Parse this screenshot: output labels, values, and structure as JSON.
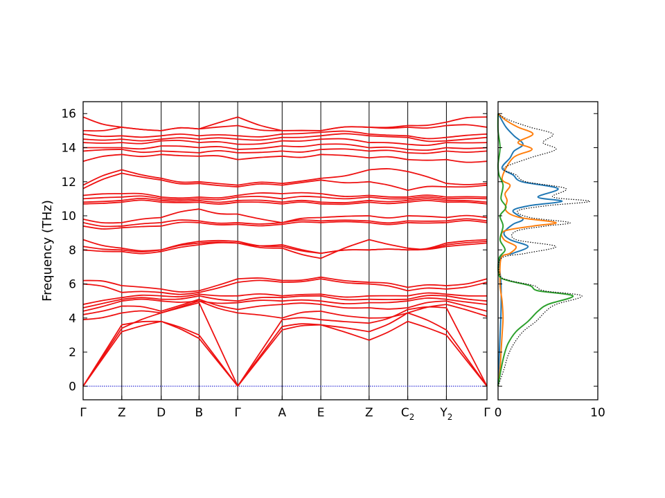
{
  "chart_data": [
    {
      "type": "line",
      "panel": "phonon-band-structure",
      "ylabel": "Frequency (THz)",
      "ylim": [
        -0.8,
        16.7
      ],
      "yticks": [
        0,
        2,
        4,
        6,
        8,
        10,
        12,
        14,
        16
      ],
      "high_symmetry_points": [
        {
          "label": "Γ",
          "sub": "",
          "x": 0.0
        },
        {
          "label": "Z",
          "sub": "",
          "x": 1.0
        },
        {
          "label": "D",
          "sub": "",
          "x": 2.02
        },
        {
          "label": "B",
          "sub": "",
          "x": 3.0
        },
        {
          "label": "Γ",
          "sub": "",
          "x": 4.0
        },
        {
          "label": "A",
          "sub": "",
          "x": 5.15
        },
        {
          "label": "E",
          "sub": "",
          "x": 6.15
        },
        {
          "label": "Z",
          "sub": "",
          "x": 7.4
        },
        {
          "label": "C",
          "sub": "2",
          "x": 8.4
        },
        {
          "label": "Y",
          "sub": "2",
          "x": 9.4
        },
        {
          "label": "Γ",
          "sub": "",
          "x": 10.45
        }
      ],
      "zero_line": {
        "y": 0,
        "color": "#0000cc"
      },
      "band_color": "#ee1111",
      "bands": [
        {
          "y": [
            0,
            3.2,
            3.8,
            2.8,
            0,
            3.3,
            3.6,
            2.7,
            3.8,
            3.0,
            0
          ]
        },
        {
          "y": [
            0,
            3.6,
            3.8,
            3.0,
            0,
            3.5,
            3.6,
            3.2,
            4.3,
            3.3,
            0
          ]
        },
        {
          "y": [
            0,
            3.4,
            4.3,
            4.9,
            0,
            3.9,
            3.9,
            3.7,
            4.5,
            4.6,
            0
          ]
        },
        {
          "y": [
            3.9,
            4.3,
            4.3,
            5.0,
            4.3,
            4.0,
            4.4,
            4.0,
            4.3,
            4.8,
            4.1
          ]
        },
        {
          "y": [
            4.2,
            4.7,
            4.4,
            5.1,
            4.5,
            4.8,
            4.8,
            4.6,
            4.6,
            5.0,
            4.4
          ]
        },
        {
          "y": [
            4.4,
            5.0,
            5.0,
            5.0,
            4.9,
            5.0,
            5.0,
            4.9,
            5.0,
            5.1,
            4.8
          ]
        },
        {
          "y": [
            4.6,
            5.1,
            5.1,
            5.3,
            5.0,
            5.2,
            5.3,
            5.1,
            5.1,
            5.3,
            5.0
          ]
        },
        {
          "y": [
            4.8,
            5.2,
            5.3,
            5.4,
            5.3,
            5.3,
            5.4,
            5.3,
            5.3,
            5.4,
            5.3
          ]
        },
        {
          "y": [
            6.0,
            5.5,
            5.5,
            5.5,
            6.1,
            6.1,
            6.3,
            6.0,
            5.6,
            5.7,
            6.1
          ]
        },
        {
          "y": [
            6.2,
            5.9,
            5.7,
            5.6,
            6.3,
            6.2,
            6.4,
            6.1,
            5.8,
            5.9,
            6.3
          ]
        },
        {
          "y": [
            8.0,
            7.9,
            7.9,
            8.3,
            8.4,
            8.1,
            7.5,
            8.6,
            8.1,
            8.2,
            8.4
          ]
        },
        {
          "y": [
            8.2,
            8.0,
            8.0,
            8.4,
            8.4,
            8.3,
            7.8,
            8.0,
            8.0,
            8.3,
            8.5
          ]
        },
        {
          "y": [
            8.6,
            8.1,
            8.0,
            8.5,
            8.5,
            8.2,
            7.8,
            8.0,
            8.0,
            8.4,
            8.6
          ]
        },
        {
          "y": [
            9.4,
            9.3,
            9.4,
            9.6,
            9.5,
            9.5,
            9.6,
            9.6,
            9.6,
            9.6,
            9.6
          ]
        },
        {
          "y": [
            9.6,
            9.4,
            9.6,
            9.7,
            9.6,
            9.6,
            9.7,
            9.7,
            9.7,
            9.7,
            9.7
          ]
        },
        {
          "y": [
            9.8,
            9.6,
            9.9,
            10.4,
            10.1,
            9.6,
            9.9,
            10.0,
            10.0,
            9.9,
            9.9
          ]
        },
        {
          "y": [
            10.7,
            10.8,
            10.8,
            10.8,
            10.8,
            10.7,
            10.7,
            10.8,
            10.8,
            10.8,
            10.7
          ]
        },
        {
          "y": [
            10.8,
            10.9,
            10.9,
            10.9,
            10.9,
            10.8,
            10.8,
            10.9,
            10.9,
            10.9,
            10.8
          ]
        },
        {
          "y": [
            11.0,
            11.1,
            11.0,
            11.0,
            11.1,
            11.0,
            11.1,
            11.1,
            11.0,
            11.0,
            11.0
          ]
        },
        {
          "y": [
            11.2,
            11.3,
            11.1,
            11.1,
            11.2,
            11.3,
            11.3,
            11.2,
            11.1,
            11.1,
            11.1
          ]
        },
        {
          "y": [
            11.6,
            12.5,
            12.1,
            11.9,
            11.7,
            11.8,
            12.1,
            12.0,
            11.5,
            11.7,
            11.8
          ]
        },
        {
          "y": [
            11.8,
            12.7,
            12.2,
            12.0,
            11.8,
            11.9,
            12.2,
            12.7,
            12.6,
            11.9,
            11.9
          ]
        },
        {
          "y": [
            13.2,
            13.6,
            13.6,
            13.5,
            13.3,
            13.5,
            13.6,
            13.4,
            13.3,
            13.3,
            13.2
          ]
        },
        {
          "y": [
            13.8,
            13.9,
            13.8,
            13.7,
            13.7,
            13.8,
            13.9,
            13.8,
            13.7,
            13.8,
            13.8
          ]
        },
        {
          "y": [
            14.0,
            14.0,
            14.1,
            14.0,
            13.9,
            14.1,
            14.2,
            14.0,
            13.9,
            14.0,
            14.0
          ]
        },
        {
          "y": [
            14.3,
            14.3,
            14.4,
            14.3,
            14.2,
            14.4,
            14.5,
            14.3,
            14.2,
            14.3,
            14.3
          ]
        },
        {
          "y": [
            14.5,
            14.5,
            14.5,
            14.5,
            14.5,
            14.6,
            14.7,
            14.7,
            14.6,
            14.4,
            14.6
          ]
        },
        {
          "y": [
            14.8,
            14.7,
            14.7,
            14.7,
            14.7,
            14.8,
            14.9,
            14.8,
            14.7,
            14.6,
            14.8
          ]
        },
        {
          "y": [
            15.0,
            15.2,
            15.0,
            15.1,
            15.3,
            15.0,
            15.0,
            15.2,
            15.2,
            15.3,
            15.2
          ]
        },
        {
          "y": [
            15.8,
            15.2,
            15.0,
            15.1,
            15.8,
            15.0,
            15.0,
            15.2,
            15.3,
            15.5,
            15.8
          ]
        }
      ]
    },
    {
      "type": "line",
      "panel": "phonon-dos",
      "xlim": [
        0,
        10
      ],
      "xticks": [
        0,
        10
      ],
      "ylim": [
        -0.8,
        16.7
      ],
      "series": [
        {
          "color": "#1f77b4",
          "style": "solid",
          "points": [
            [
              0,
              0
            ],
            [
              0.1,
              1.5
            ],
            [
              0.2,
              3.0
            ],
            [
              0.3,
              4.5
            ],
            [
              0.3,
              6.0
            ],
            [
              0.2,
              7.5
            ],
            [
              1.5,
              7.8
            ],
            [
              3.0,
              8.2
            ],
            [
              1.2,
              8.6
            ],
            [
              0.6,
              9.0
            ],
            [
              1.5,
              9.5
            ],
            [
              2.5,
              9.8
            ],
            [
              1.5,
              10.3
            ],
            [
              3.2,
              10.6
            ],
            [
              6.4,
              10.85
            ],
            [
              4.0,
              11.1
            ],
            [
              6.0,
              11.6
            ],
            [
              2.4,
              12.0
            ],
            [
              1.5,
              12.4
            ],
            [
              0.4,
              12.8
            ],
            [
              1.2,
              13.4
            ],
            [
              1.6,
              13.8
            ],
            [
              2.5,
              14.2
            ],
            [
              1.6,
              14.7
            ],
            [
              0.8,
              15.2
            ],
            [
              0.2,
              15.8
            ],
            [
              0,
              16.0
            ]
          ]
        },
        {
          "color": "#ff7f0e",
          "style": "solid",
          "points": [
            [
              0,
              0
            ],
            [
              0.2,
              1.0
            ],
            [
              0.3,
              2.0
            ],
            [
              0.4,
              3.0
            ],
            [
              0.5,
              4.0
            ],
            [
              0.4,
              5.0
            ],
            [
              0.2,
              6.0
            ],
            [
              0.3,
              7.5
            ],
            [
              1.2,
              7.8
            ],
            [
              1.8,
              8.2
            ],
            [
              0.6,
              8.6
            ],
            [
              0.6,
              9.1
            ],
            [
              3.5,
              9.4
            ],
            [
              5.8,
              9.6
            ],
            [
              2.2,
              9.9
            ],
            [
              0.8,
              10.3
            ],
            [
              0.9,
              10.9
            ],
            [
              0.7,
              11.3
            ],
            [
              1.2,
              11.8
            ],
            [
              0.4,
              12.2
            ],
            [
              1.5,
              13.4
            ],
            [
              3.4,
              13.9
            ],
            [
              2.0,
              14.3
            ],
            [
              3.5,
              14.8
            ],
            [
              2.0,
              15.2
            ],
            [
              0.8,
              15.6
            ],
            [
              0,
              16.0
            ]
          ]
        },
        {
          "color": "#2ca02c",
          "style": "solid",
          "points": [
            [
              0,
              0
            ],
            [
              0.3,
              1.0
            ],
            [
              0.6,
              1.8
            ],
            [
              1.0,
              2.5
            ],
            [
              1.8,
              3.2
            ],
            [
              3.0,
              3.8
            ],
            [
              4.0,
              4.4
            ],
            [
              5.0,
              4.8
            ],
            [
              7.5,
              5.3
            ],
            [
              4.0,
              5.6
            ],
            [
              3.2,
              5.9
            ],
            [
              1.0,
              6.2
            ],
            [
              0.1,
              6.5
            ],
            [
              0.1,
              7.5
            ],
            [
              0.7,
              8.0
            ],
            [
              0.2,
              8.6
            ],
            [
              0.5,
              9.4
            ],
            [
              0.2,
              10.0
            ],
            [
              0.8,
              10.5
            ],
            [
              0.3,
              11.0
            ],
            [
              0.5,
              11.8
            ],
            [
              0.1,
              12.4
            ],
            [
              0,
              13.0
            ],
            [
              0.2,
              14.0
            ],
            [
              0,
              15.0
            ],
            [
              0,
              16.0
            ]
          ]
        },
        {
          "color": "#000000",
          "style": "dotted",
          "points": [
            [
              0,
              0
            ],
            [
              0.6,
              1.0
            ],
            [
              1.0,
              1.8
            ],
            [
              1.6,
              2.5
            ],
            [
              2.5,
              3.2
            ],
            [
              3.8,
              3.8
            ],
            [
              4.8,
              4.4
            ],
            [
              5.8,
              4.8
            ],
            [
              8.4,
              5.3
            ],
            [
              4.6,
              5.6
            ],
            [
              3.6,
              5.9
            ],
            [
              1.2,
              6.2
            ],
            [
              0.2,
              6.5
            ],
            [
              0.3,
              7.5
            ],
            [
              2.8,
              7.8
            ],
            [
              5.8,
              8.2
            ],
            [
              1.8,
              8.6
            ],
            [
              1.8,
              9.1
            ],
            [
              4.8,
              9.4
            ],
            [
              7.2,
              9.6
            ],
            [
              3.2,
              9.9
            ],
            [
              2.0,
              10.3
            ],
            [
              5.0,
              10.6
            ],
            [
              9.2,
              10.85
            ],
            [
              5.5,
              11.1
            ],
            [
              6.8,
              11.6
            ],
            [
              2.8,
              12.0
            ],
            [
              1.8,
              12.4
            ],
            [
              0.6,
              12.8
            ],
            [
              3.2,
              13.4
            ],
            [
              5.8,
              13.9
            ],
            [
              4.5,
              14.3
            ],
            [
              5.5,
              14.8
            ],
            [
              3.2,
              15.2
            ],
            [
              1.2,
              15.6
            ],
            [
              0.2,
              15.9
            ],
            [
              0,
              16.0
            ]
          ]
        }
      ]
    }
  ]
}
